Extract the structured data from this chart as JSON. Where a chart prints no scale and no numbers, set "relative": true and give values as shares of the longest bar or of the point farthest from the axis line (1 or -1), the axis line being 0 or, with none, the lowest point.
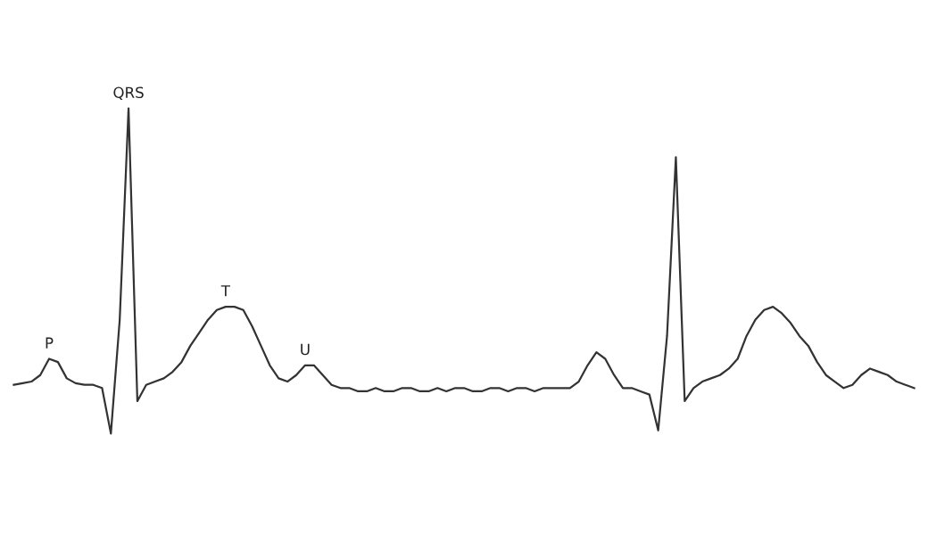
{
  "chart_data": {
    "type": "line",
    "relative": true,
    "grid": false,
    "marker": "none",
    "line_style": "solid",
    "categories": [
      null,
      null,
      null,
      null,
      null,
      null,
      null,
      null,
      null,
      null,
      null,
      null,
      null,
      null,
      null,
      null,
      null,
      null,
      null,
      null,
      null,
      null,
      null,
      null,
      null,
      null,
      null,
      null,
      null,
      null,
      null,
      null,
      null,
      null,
      null,
      null,
      null,
      null,
      null,
      null,
      null,
      null,
      null,
      null,
      null,
      null,
      null,
      null,
      null,
      null,
      null,
      null,
      null,
      null,
      null,
      null,
      null,
      null,
      null,
      null,
      null,
      null,
      null,
      null,
      null,
      null,
      null,
      null,
      null,
      null,
      null,
      null,
      null,
      null,
      null,
      null,
      null,
      null,
      null,
      null,
      null,
      null,
      null,
      null,
      null,
      null,
      null,
      null,
      null,
      null,
      null,
      null,
      null,
      null,
      null,
      null,
      null,
      null,
      null,
      null,
      null,
      null,
      null
    ],
    "series": [
      {
        "color": "#333333",
        "values": [
          0.15,
          0.155,
          0.16,
          0.18,
          0.23,
          0.22,
          0.17,
          0.155,
          0.15,
          0.15,
          0.14,
          0.0,
          0.35,
          1.0,
          0.1,
          0.15,
          0.16,
          0.17,
          0.19,
          0.22,
          0.27,
          0.31,
          0.35,
          0.38,
          0.39,
          0.39,
          0.38,
          0.33,
          0.27,
          0.21,
          0.17,
          0.16,
          0.18,
          0.21,
          0.21,
          0.18,
          0.15,
          0.14,
          0.14,
          0.13,
          0.13,
          0.14,
          0.13,
          0.13,
          0.14,
          0.14,
          0.13,
          0.13,
          0.14,
          0.13,
          0.14,
          0.14,
          0.13,
          0.13,
          0.14,
          0.14,
          0.13,
          0.14,
          0.14,
          0.13,
          0.14,
          0.14,
          0.14,
          0.14,
          0.16,
          0.21,
          0.25,
          0.23,
          0.18,
          0.14,
          0.14,
          0.13,
          0.12,
          0.01,
          0.3,
          0.85,
          0.1,
          0.14,
          0.16,
          0.17,
          0.18,
          0.2,
          0.23,
          0.3,
          0.35,
          0.38,
          0.39,
          0.37,
          0.34,
          0.3,
          0.27,
          0.22,
          0.18,
          0.16,
          0.14,
          0.15,
          0.18,
          0.2,
          0.19,
          0.18,
          0.16,
          0.15,
          0.14
        ]
      }
    ],
    "annotations": [
      "P",
      "QRS",
      "T",
      "U"
    ]
  }
}
